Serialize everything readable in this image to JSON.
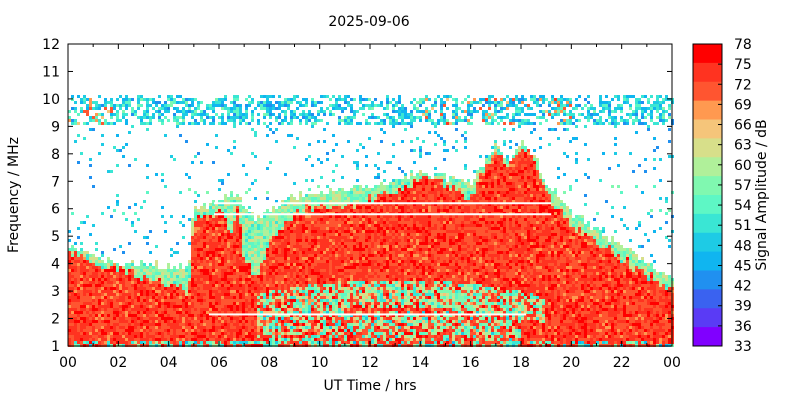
{
  "chart_data": {
    "type": "heatmap",
    "title": "2025-09-06",
    "xlabel": "UT Time / hrs",
    "ylabel": "Frequency / MHz",
    "xlim": [
      0,
      24
    ],
    "ylim": [
      1,
      12
    ],
    "x_ticks": [
      "00",
      "02",
      "04",
      "06",
      "08",
      "10",
      "12",
      "14",
      "16",
      "18",
      "20",
      "22",
      "00"
    ],
    "y_ticks": [
      "1",
      "2",
      "3",
      "4",
      "5",
      "6",
      "7",
      "8",
      "9",
      "10",
      "11",
      "12"
    ],
    "colorbar": {
      "label": "Signal Amplitude / dB",
      "ticks": [
        "78",
        "75",
        "72",
        "69",
        "66",
        "63",
        "60",
        "57",
        "54",
        "51",
        "48",
        "45",
        "42",
        "39",
        "36",
        "33"
      ],
      "range": [
        33,
        78
      ],
      "colors": [
        "#ff0000",
        "#ff3320",
        "#ff5530",
        "#ff9950",
        "#f5c57a",
        "#d7df8a",
        "#b0f09a",
        "#80f8b0",
        "#5ef7c5",
        "#3ae6d4",
        "#1ecbe5",
        "#10b5f0",
        "#2090f0",
        "#3a62f0",
        "#5a3bf5",
        "#8000ff"
      ]
    },
    "profile": {
      "note_free": true,
      "hours": [
        0,
        1,
        2,
        3,
        4,
        4.8,
        5.0,
        5.5,
        6.0,
        6.5,
        6.8,
        7.0,
        7.5,
        8,
        9,
        10,
        11,
        12,
        13,
        14,
        15,
        16,
        16.5,
        17,
        17.5,
        18,
        18.5,
        19,
        19.5,
        20,
        21,
        22,
        23,
        24
      ],
      "strong_top_mhz": [
        4.4,
        4.1,
        3.8,
        3.5,
        3.2,
        3.0,
        5.8,
        5.6,
        6.0,
        5.2,
        6.2,
        4.0,
        3.6,
        4.8,
        5.8,
        6.2,
        6.0,
        6.4,
        6.6,
        7.1,
        6.9,
        6.4,
        7.3,
        8.2,
        7.4,
        8.3,
        7.8,
        6.6,
        6.0,
        5.4,
        4.8,
        4.2,
        3.6,
        3.1
      ],
      "weak_top_mhz": [
        4.6,
        4.2,
        4.0,
        3.9,
        3.9,
        3.8,
        6.1,
        6.0,
        6.3,
        6.5,
        6.6,
        6.0,
        5.6,
        5.9,
        6.4,
        6.6,
        6.6,
        6.8,
        7.0,
        7.3,
        7.1,
        6.9,
        7.5,
        8.3,
        7.6,
        8.4,
        7.9,
        6.9,
        6.4,
        5.8,
        5.2,
        4.6,
        4.0,
        3.4
      ]
    }
  }
}
